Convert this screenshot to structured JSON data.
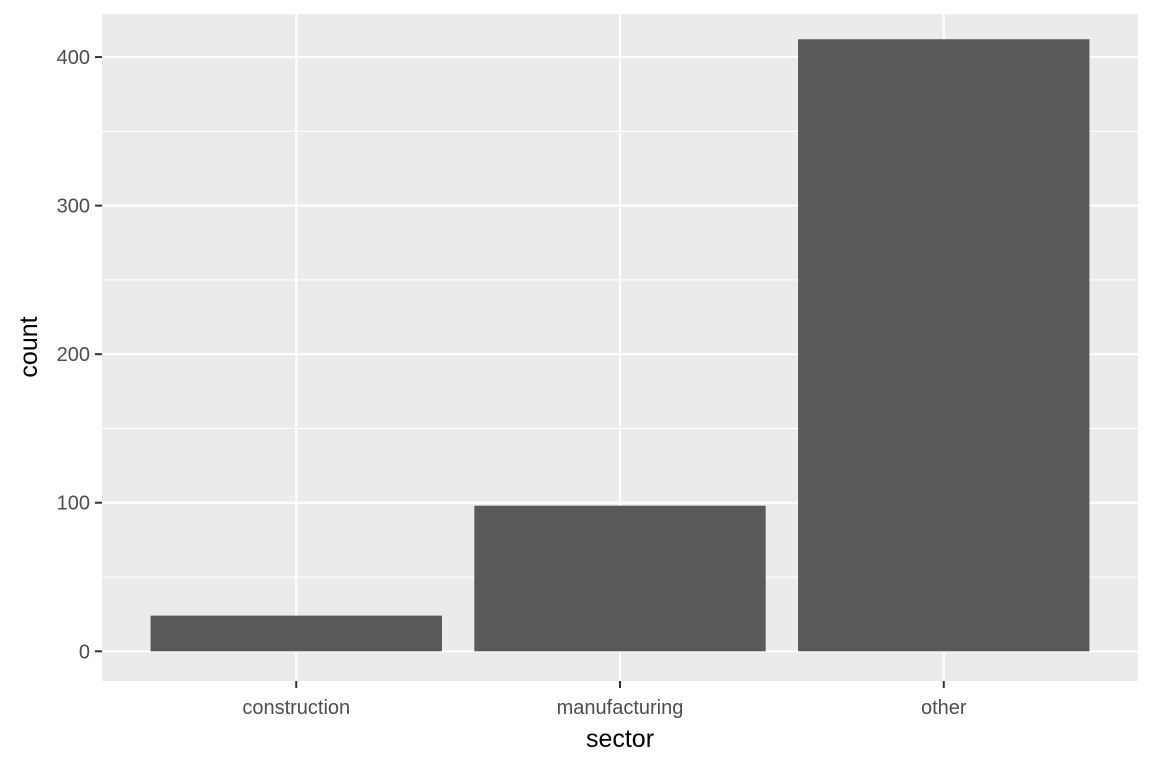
{
  "chart_data": {
    "type": "bar",
    "categories": [
      "construction",
      "manufacturing",
      "other"
    ],
    "values": [
      24,
      98,
      412
    ],
    "title": "",
    "xlabel": "sector",
    "ylabel": "count",
    "ylim": [
      -20,
      429
    ],
    "yticks": [
      "0",
      "100",
      "200",
      "300",
      "400"
    ],
    "grid": true,
    "legend": "none",
    "colors": {
      "panel_background": "#ebebeb",
      "grid_line": "#ffffff",
      "bar_fill": "#595959",
      "tick_color": "#333333"
    }
  }
}
